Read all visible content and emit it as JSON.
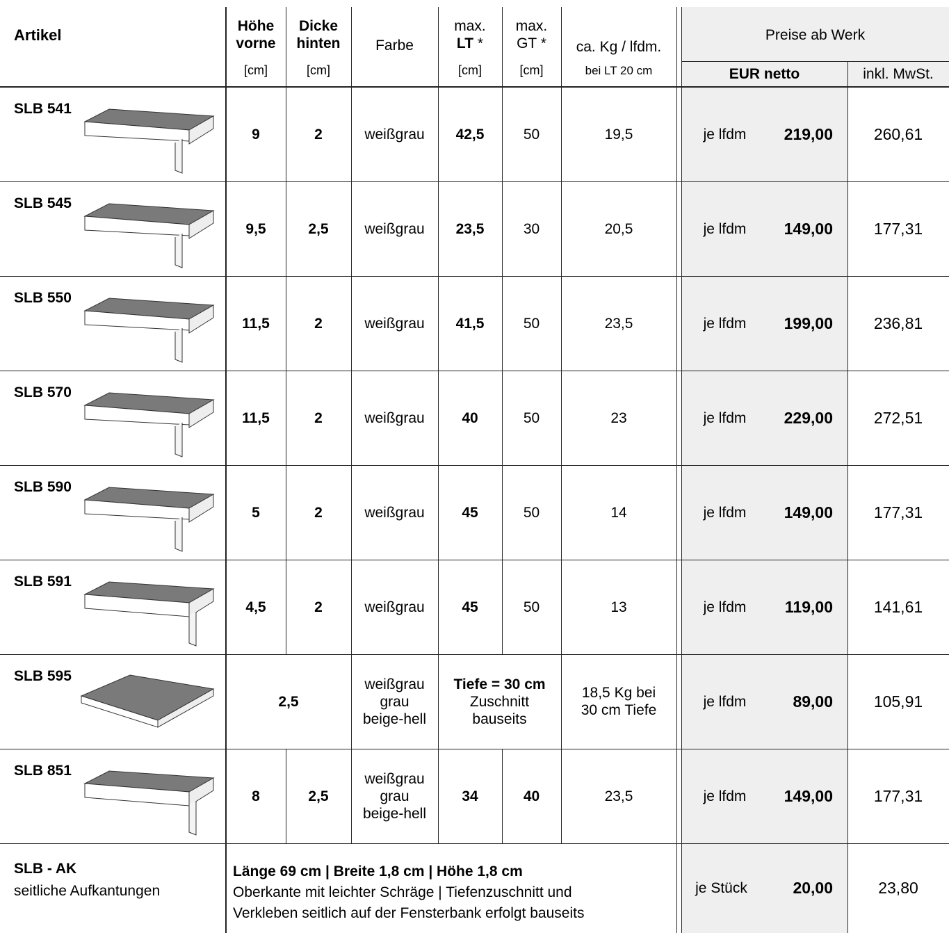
{
  "header": {
    "artikel": "Artikel",
    "hoehe": [
      "Höhe",
      "vorne"
    ],
    "hoehe_unit": "[cm]",
    "dicke": [
      "Dicke",
      "hinten"
    ],
    "dicke_unit": "[cm]",
    "farbe": "Farbe",
    "lt_top": "max.",
    "lt": "LT",
    "lt_star": "*",
    "lt_unit": "[cm]",
    "gt_top": "max.",
    "gt": "GT",
    "gt_star": "*",
    "gt_unit": "[cm]",
    "kg": "ca. Kg / lfdm.",
    "kg_unit": "bei LT 20 cm",
    "preise": "Preise ab Werk",
    "netto": "EUR netto",
    "inkl": "inkl. MwSt."
  },
  "rows": [
    {
      "name": "SLB 541",
      "hoehe": "9",
      "dicke": "2",
      "farbe": [
        "weißgrau"
      ],
      "lt": "42,5",
      "gt": "50",
      "kg": [
        "19,5"
      ],
      "unit": "je lfdm",
      "netto": "219,00",
      "inkl": "260,61"
    },
    {
      "name": "SLB 545",
      "hoehe": "9,5",
      "dicke": "2,5",
      "farbe": [
        "weißgrau"
      ],
      "lt": "23,5",
      "gt": "30",
      "kg": [
        "20,5"
      ],
      "unit": "je lfdm",
      "netto": "149,00",
      "inkl": "177,31"
    },
    {
      "name": "SLB 550",
      "hoehe": "11,5",
      "dicke": "2",
      "farbe": [
        "weißgrau"
      ],
      "lt": "41,5",
      "gt": "50",
      "kg": [
        "23,5"
      ],
      "unit": "je lfdm",
      "netto": "199,00",
      "inkl": "236,81"
    },
    {
      "name": "SLB 570",
      "hoehe": "11,5",
      "dicke": "2",
      "farbe": [
        "weißgrau"
      ],
      "lt": "40",
      "gt": "50",
      "kg": [
        "23"
      ],
      "unit": "je lfdm",
      "netto": "229,00",
      "inkl": "272,51"
    },
    {
      "name": "SLB 590",
      "hoehe": "5",
      "dicke": "2",
      "farbe": [
        "weißgrau"
      ],
      "lt": "45",
      "gt": "50",
      "kg": [
        "14"
      ],
      "unit": "je lfdm",
      "netto": "149,00",
      "inkl": "177,31"
    },
    {
      "name": "SLB 591",
      "hoehe": "4,5",
      "dicke": "2",
      "farbe": [
        "weißgrau"
      ],
      "lt": "45",
      "gt": "50",
      "kg": [
        "13"
      ],
      "unit": "je lfdm",
      "netto": "119,00",
      "inkl": "141,61"
    },
    {
      "name": "SLB 595",
      "hoehe_dicke": "2,5",
      "farbe": [
        "weißgrau",
        "grau",
        "beige-hell"
      ],
      "lt_gt": [
        "Tiefe = 30 cm",
        "Zuschnitt",
        "bauseits"
      ],
      "kg": [
        "18,5 Kg bei",
        "30 cm Tiefe"
      ],
      "unit": "je lfdm",
      "netto": "89,00",
      "inkl": "105,91"
    },
    {
      "name": "SLB 851",
      "hoehe": "8",
      "dicke": "2,5",
      "farbe": [
        "weißgrau",
        "grau",
        "beige-hell"
      ],
      "lt": "34",
      "gt": "40",
      "kg": [
        "23,5"
      ],
      "unit": "je lfdm",
      "netto": "149,00",
      "inkl": "177,31"
    }
  ],
  "ak": {
    "name": "SLB - AK",
    "sub": "seitliche Aufkantungen",
    "desc": [
      "Länge 69 cm  |  Breite 1,8 cm  |  Höhe 1,8 cm",
      "Oberkante mit leichter Schräge  |  Tiefenzuschnitt und",
      "Verkleben seitlich auf der Fensterbank erfolgt bauseits"
    ],
    "unit": "je Stück",
    "netto": "20,00",
    "inkl": "23,80"
  }
}
